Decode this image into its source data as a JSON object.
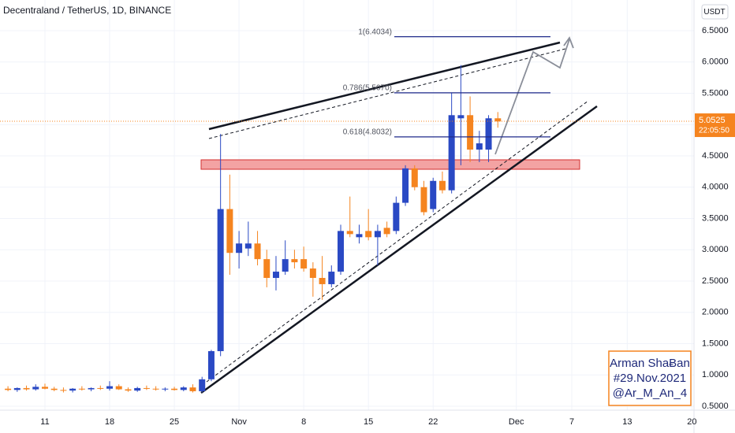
{
  "chart_data": {
    "type": "candlestick",
    "title": "Decentraland / TetherUS, 1D, BINANCE",
    "currency": "USDT",
    "categories": [
      null,
      null,
      null,
      null,
      "11",
      null,
      null,
      null,
      null,
      null,
      null,
      "18",
      null,
      null,
      null,
      null,
      null,
      null,
      "25",
      null,
      null,
      null,
      null,
      null,
      null,
      "Nov",
      null,
      null,
      null,
      null,
      null,
      null,
      "8",
      null,
      null,
      null,
      null,
      null,
      null,
      "15",
      null,
      null,
      null,
      null,
      null,
      null,
      "22",
      null,
      null,
      null,
      null,
      null,
      null,
      null,
      null,
      "Dec",
      null,
      null,
      null,
      null,
      null,
      "7",
      null,
      null,
      null,
      null,
      null,
      "13",
      null,
      null,
      null,
      null,
      null,
      null,
      "20",
      null
    ],
    "open": [
      0.78,
      0.76,
      0.79,
      0.77,
      0.81,
      0.78,
      0.76,
      0.75,
      0.78,
      0.77,
      0.79,
      0.78,
      0.82,
      0.77,
      0.75,
      0.79,
      0.78,
      0.77,
      0.78,
      0.76,
      0.8,
      0.74,
      0.93,
      1.38,
      3.65,
      2.95,
      3.02,
      3.1,
      2.85,
      2.55,
      2.65,
      2.85,
      2.85,
      2.7,
      2.55,
      2.45,
      2.65,
      3.3,
      3.2,
      3.3,
      3.2,
      3.35,
      3.3,
      3.75,
      4.3,
      4.0,
      3.65,
      4.1,
      3.95,
      5.1,
      5.15,
      4.6,
      4.6,
      5.1,
      null,
      null,
      null,
      null,
      null,
      null,
      null,
      null,
      null,
      null,
      null,
      null,
      null,
      null,
      null,
      null,
      null,
      null,
      null,
      null,
      null,
      null
    ],
    "high": [
      0.82,
      0.8,
      0.83,
      0.85,
      0.86,
      0.81,
      0.8,
      0.79,
      0.82,
      0.8,
      0.83,
      0.9,
      0.85,
      0.8,
      0.81,
      0.83,
      0.82,
      0.8,
      0.81,
      0.82,
      0.85,
      0.97,
      1.4,
      4.85,
      4.2,
      3.3,
      3.45,
      3.3,
      3.0,
      2.9,
      3.15,
      3.0,
      3.05,
      2.8,
      2.9,
      2.75,
      3.4,
      3.85,
      3.4,
      3.65,
      3.4,
      3.45,
      3.85,
      4.35,
      4.35,
      4.1,
      4.15,
      4.25,
      5.5,
      5.95,
      5.45,
      4.9,
      5.15,
      5.2,
      null,
      null,
      null,
      null,
      null,
      null,
      null,
      null,
      null,
      null,
      null,
      null,
      null,
      null,
      null,
      null,
      null,
      null,
      null,
      null,
      null,
      null
    ],
    "low": [
      0.74,
      0.73,
      0.75,
      0.75,
      0.77,
      0.74,
      0.72,
      0.72,
      0.75,
      0.74,
      0.76,
      0.75,
      0.76,
      0.73,
      0.73,
      0.76,
      0.75,
      0.74,
      0.75,
      0.74,
      0.72,
      0.72,
      0.9,
      1.3,
      2.6,
      2.7,
      2.9,
      2.75,
      2.4,
      2.35,
      2.6,
      2.7,
      2.65,
      2.25,
      2.2,
      2.4,
      2.6,
      3.2,
      3.1,
      3.15,
      2.75,
      3.2,
      3.25,
      3.7,
      3.95,
      3.55,
      3.6,
      3.9,
      3.9,
      4.35,
      4.4,
      4.4,
      4.4,
      4.95,
      null,
      null,
      null,
      null,
      null,
      null,
      null,
      null,
      null,
      null,
      null,
      null,
      null,
      null,
      null,
      null,
      null,
      null,
      null,
      null,
      null,
      null
    ],
    "close": [
      0.76,
      0.79,
      0.77,
      0.81,
      0.78,
      0.76,
      0.75,
      0.78,
      0.77,
      0.79,
      0.78,
      0.82,
      0.77,
      0.75,
      0.79,
      0.78,
      0.77,
      0.78,
      0.76,
      0.8,
      0.74,
      0.93,
      1.38,
      3.65,
      2.95,
      3.1,
      3.1,
      2.85,
      2.55,
      2.65,
      2.85,
      2.8,
      2.7,
      2.55,
      2.45,
      2.65,
      3.3,
      3.25,
      3.25,
      3.2,
      3.3,
      3.25,
      3.75,
      4.3,
      4.0,
      3.6,
      4.1,
      3.95,
      5.15,
      5.15,
      4.6,
      4.7,
      5.1,
      5.05,
      null,
      null,
      null,
      null,
      null,
      null,
      null,
      null,
      null,
      null,
      null,
      null,
      null,
      null,
      null,
      null,
      null,
      null,
      null,
      null,
      null,
      null
    ],
    "up_color": "#2a49c4",
    "down_color": "#f5841f",
    "ylim": [
      0.437,
      6.99
    ],
    "yticks": [
      {
        "value": 0.5,
        "label": "0.5000"
      },
      {
        "value": 1,
        "label": "1.0000"
      },
      {
        "value": 1.5,
        "label": "1.5000"
      },
      {
        "value": 2,
        "label": "2.0000"
      },
      {
        "value": 2.5,
        "label": "2.5000"
      },
      {
        "value": 3,
        "label": "3.0000"
      },
      {
        "value": 3.5,
        "label": "3.5000"
      },
      {
        "value": 4,
        "label": "4.0000"
      },
      {
        "value": 4.5,
        "label": "4.5000"
      },
      {
        "value": 5,
        "label": "5.0000"
      },
      {
        "value": 5.5,
        "label": "5.5000"
      },
      {
        "value": 6,
        "label": "6.0000"
      },
      {
        "value": 6.5,
        "label": "6.5000"
      }
    ],
    "grid": true,
    "last_price": 5.0525,
    "countdown": "22:05:50",
    "fib_levels": [
      {
        "label": "1(6.4034)",
        "value": 6.4034
      },
      {
        "label": "0.786(5.5070)",
        "value": 5.507
      },
      {
        "label": "0.618(4.8032)",
        "value": 4.8032
      }
    ],
    "annotation": [
      "Arman ShaɃan",
      "#29.Nov.2021",
      "@Ar_M_An_4"
    ]
  }
}
